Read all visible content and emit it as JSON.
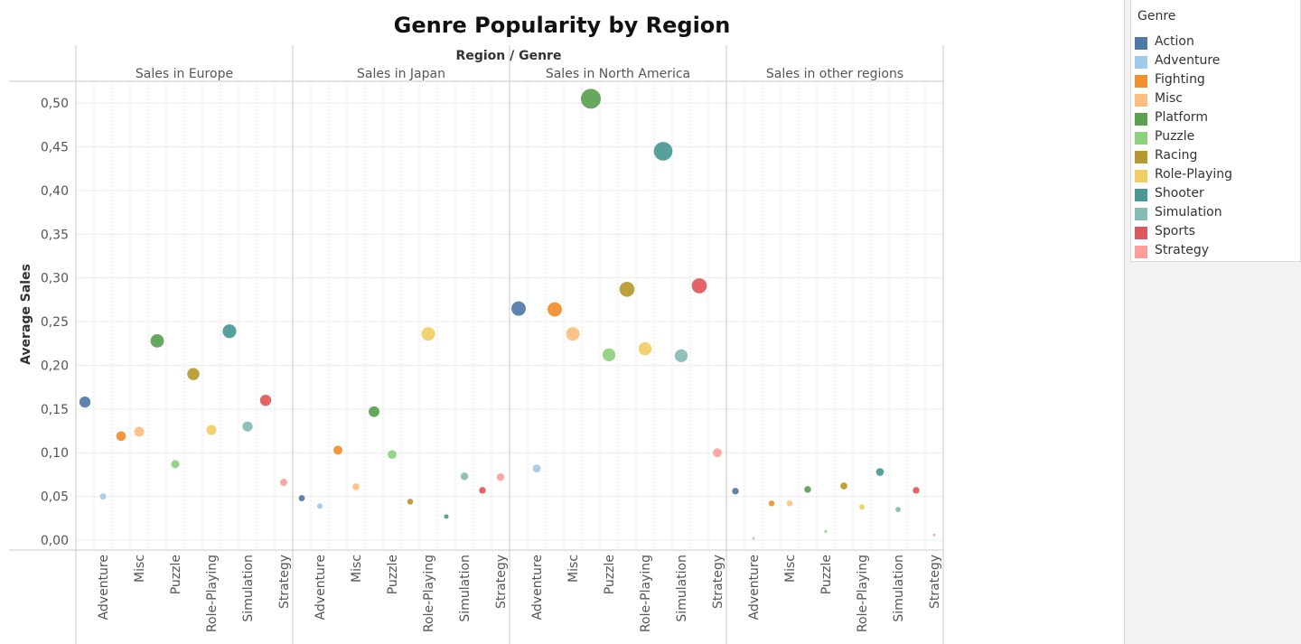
{
  "chart_data": {
    "type": "scatter",
    "title": "Genre Popularity by Region",
    "column_header": "Region / Genre",
    "ylabel": "Average Sales",
    "ylim": [
      0,
      0.55
    ],
    "yticks": [
      "0,00",
      "0,05",
      "0,10",
      "0,15",
      "0,20",
      "0,25",
      "0,30",
      "0,35",
      "0,40",
      "0,45",
      "0,50"
    ],
    "genres": [
      "Action",
      "Adventure",
      "Fighting",
      "Misc",
      "Platform",
      "Puzzle",
      "Racing",
      "Role-Playing",
      "Shooter",
      "Simulation",
      "Sports",
      "Strategy"
    ],
    "genre_tick_labels": [
      "",
      "Adventure",
      "",
      "Misc",
      "",
      "Puzzle",
      "",
      "Role-Playing",
      "",
      "Simulation",
      "",
      "Strategy"
    ],
    "regions": [
      {
        "name": "Sales in Europe",
        "values": [
          0.158,
          0.05,
          0.119,
          0.124,
          0.228,
          0.087,
          0.19,
          0.126,
          0.239,
          0.13,
          0.16,
          0.066
        ]
      },
      {
        "name": "Sales in Japan",
        "values": [
          0.048,
          0.039,
          0.103,
          0.061,
          0.147,
          0.098,
          0.044,
          0.236,
          0.027,
          0.073,
          0.057,
          0.072
        ]
      },
      {
        "name": "Sales in North America",
        "values": [
          0.265,
          0.082,
          0.264,
          0.236,
          0.505,
          0.212,
          0.287,
          0.219,
          0.445,
          0.211,
          0.291,
          0.1
        ]
      },
      {
        "name": "Sales in other regions",
        "values": [
          0.056,
          0.002,
          0.042,
          0.042,
          0.058,
          0.01,
          0.062,
          0.038,
          0.078,
          0.035,
          0.057,
          0.006
        ]
      }
    ],
    "legend_title": "Genre",
    "legend_placement": "right",
    "grid": true
  },
  "colors": {
    "Action": "#4e79a7",
    "Adventure": "#a0cbe8",
    "Fighting": "#f28e2b",
    "Misc": "#ffbe7d",
    "Platform": "#59a14f",
    "Puzzle": "#8cd17d",
    "Racing": "#b6992d",
    "Role-Playing": "#f1ce63",
    "Shooter": "#499894",
    "Simulation": "#86bcb6",
    "Sports": "#e15759",
    "Strategy": "#ff9d9a"
  }
}
